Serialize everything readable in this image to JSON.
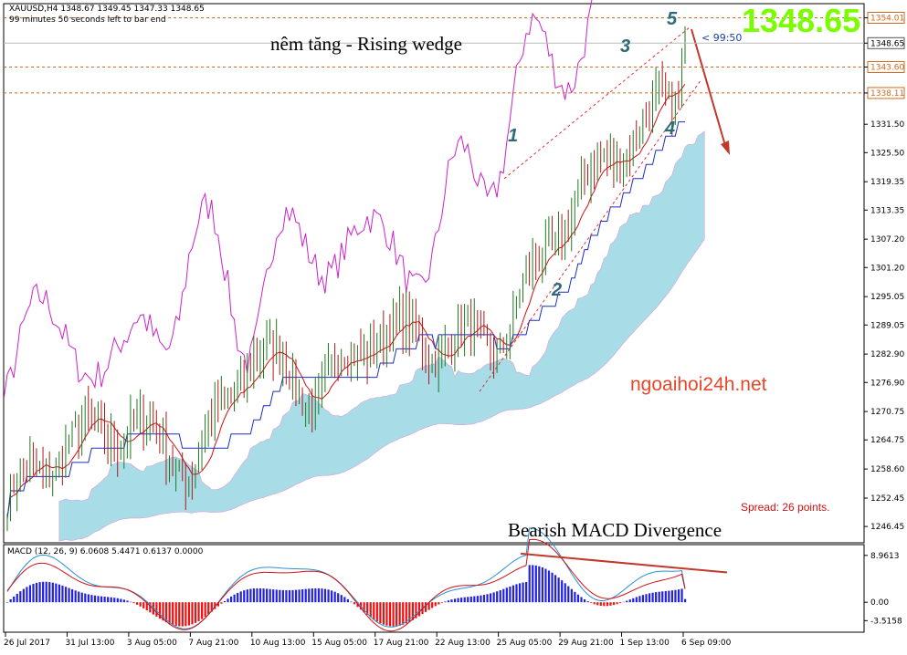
{
  "header": {
    "symbol_line": "XAUUSD,H4  1348.67 1349.45 1347.33 1348.65",
    "timer_line": "99 minutes 50 seconds left to bar end"
  },
  "annotations": {
    "pattern_title": "nêm tăng - Rising wedge",
    "macd_note": "Bearish MACD Divergence",
    "big_price": "1348.65",
    "website": "ngoaihoi24h.net",
    "spread": "Spread: 26 points.",
    "bar_timer": "< 99:50",
    "waves": [
      "1",
      "2",
      "3",
      "4",
      "5"
    ]
  },
  "price_axis": {
    "labels": [
      "1354.01",
      "1348.65",
      "1343.60",
      "1338.11",
      "1331.50",
      "1325.50",
      "1319.35",
      "1313.35",
      "1307.20",
      "1301.20",
      "1295.05",
      "1289.05",
      "1282.90",
      "1276.90",
      "1270.75",
      "1264.75",
      "1258.60",
      "1252.45",
      "1246.45"
    ],
    "highlighted": [
      "1354.01",
      "1343.60",
      "1338.11"
    ],
    "current": "1348.65",
    "min": 1243.0,
    "max": 1357.0
  },
  "macd_axis": {
    "labels": [
      "8.9613",
      "0.00",
      "-3.5158"
    ],
    "min": -5.2,
    "max": 10.5
  },
  "time_axis": [
    "26 Jul 2017",
    "31 Jul 13:00",
    "3 Aug 05:00",
    "7 Aug 21:00",
    "10 Aug 13:00",
    "15 Aug 05:00",
    "17 Aug 21:00",
    "22 Aug 13:00",
    "25 Aug 05:00",
    "29 Aug 21:00",
    "1 Sep 13:00",
    "6 Sep 09:00"
  ],
  "macd_header": "MACD (12, 26, 9) 6.0608 5.4471 0.6137 0.0000",
  "colors": {
    "bull_candle": "#1f7a1f",
    "bear_candle": "#b01818",
    "chikou": "#cc22cc",
    "tenkan": "#d01010",
    "kijun": "#1a2ec0",
    "cloud": "#a8dce6",
    "cloud_bear": "#d9a0d9",
    "macd_pos": "#2222dd",
    "macd_neg": "#ee1111",
    "wedge": "#e03030",
    "arrow": "#c0392b",
    "big_price": "#7cfc00"
  },
  "chart_data": {
    "type": "candlestick",
    "symbol": "XAUUSD",
    "timeframe": "H4",
    "title": "XAUUSD,H4",
    "ohlc_last": {
      "open": 1348.67,
      "high": 1349.45,
      "low": 1347.33,
      "close": 1348.65
    },
    "close_path": [
      {
        "t": "26 Jul 2017",
        "close": 1252.0
      },
      {
        "t": "31 Jul 13:00",
        "close": 1264.5
      },
      {
        "t": "3 Aug 05:00",
        "close": 1268.0
      },
      {
        "t": "7 Aug 21:00",
        "close": 1258.5
      },
      {
        "t": "10 Aug 13:00",
        "close": 1284.0
      },
      {
        "t": "15 Aug 05:00",
        "close": 1274.0
      },
      {
        "t": "17 Aug 21:00",
        "close": 1288.0
      },
      {
        "t": "22 Aug 13:00",
        "close": 1285.0
      },
      {
        "t": "25 Aug 05:00",
        "close": 1286.0
      },
      {
        "t": "29 Aug 21:00",
        "close": 1311.0
      },
      {
        "t": "1 Sep 13:00",
        "close": 1328.0
      },
      {
        "t": "6 Sep 09:00",
        "close": 1339.0
      }
    ],
    "wedge_points": [
      {
        "label": "1",
        "t": "29 Aug 21:00",
        "price": 1326.0
      },
      {
        "label": "2",
        "t": "29 Aug 21:00",
        "price": 1301.5
      },
      {
        "label": "3",
        "t": "1 Sep 13:00",
        "price": 1341.5
      },
      {
        "label": "4",
        "t": "6 Sep 09:00",
        "price": 1331.0
      },
      {
        "label": "5",
        "t": "6 Sep 09:00",
        "price": 1349.0
      }
    ],
    "macd": {
      "params": "12, 26, 9",
      "value": 6.0608,
      "signal": 5.4471,
      "histogram": 0.6137
    },
    "indicators": [
      "Ichimoku",
      "MACD (12, 26, 9)"
    ],
    "grid": false,
    "ylim": [
      1243.0,
      1357.0
    ]
  }
}
